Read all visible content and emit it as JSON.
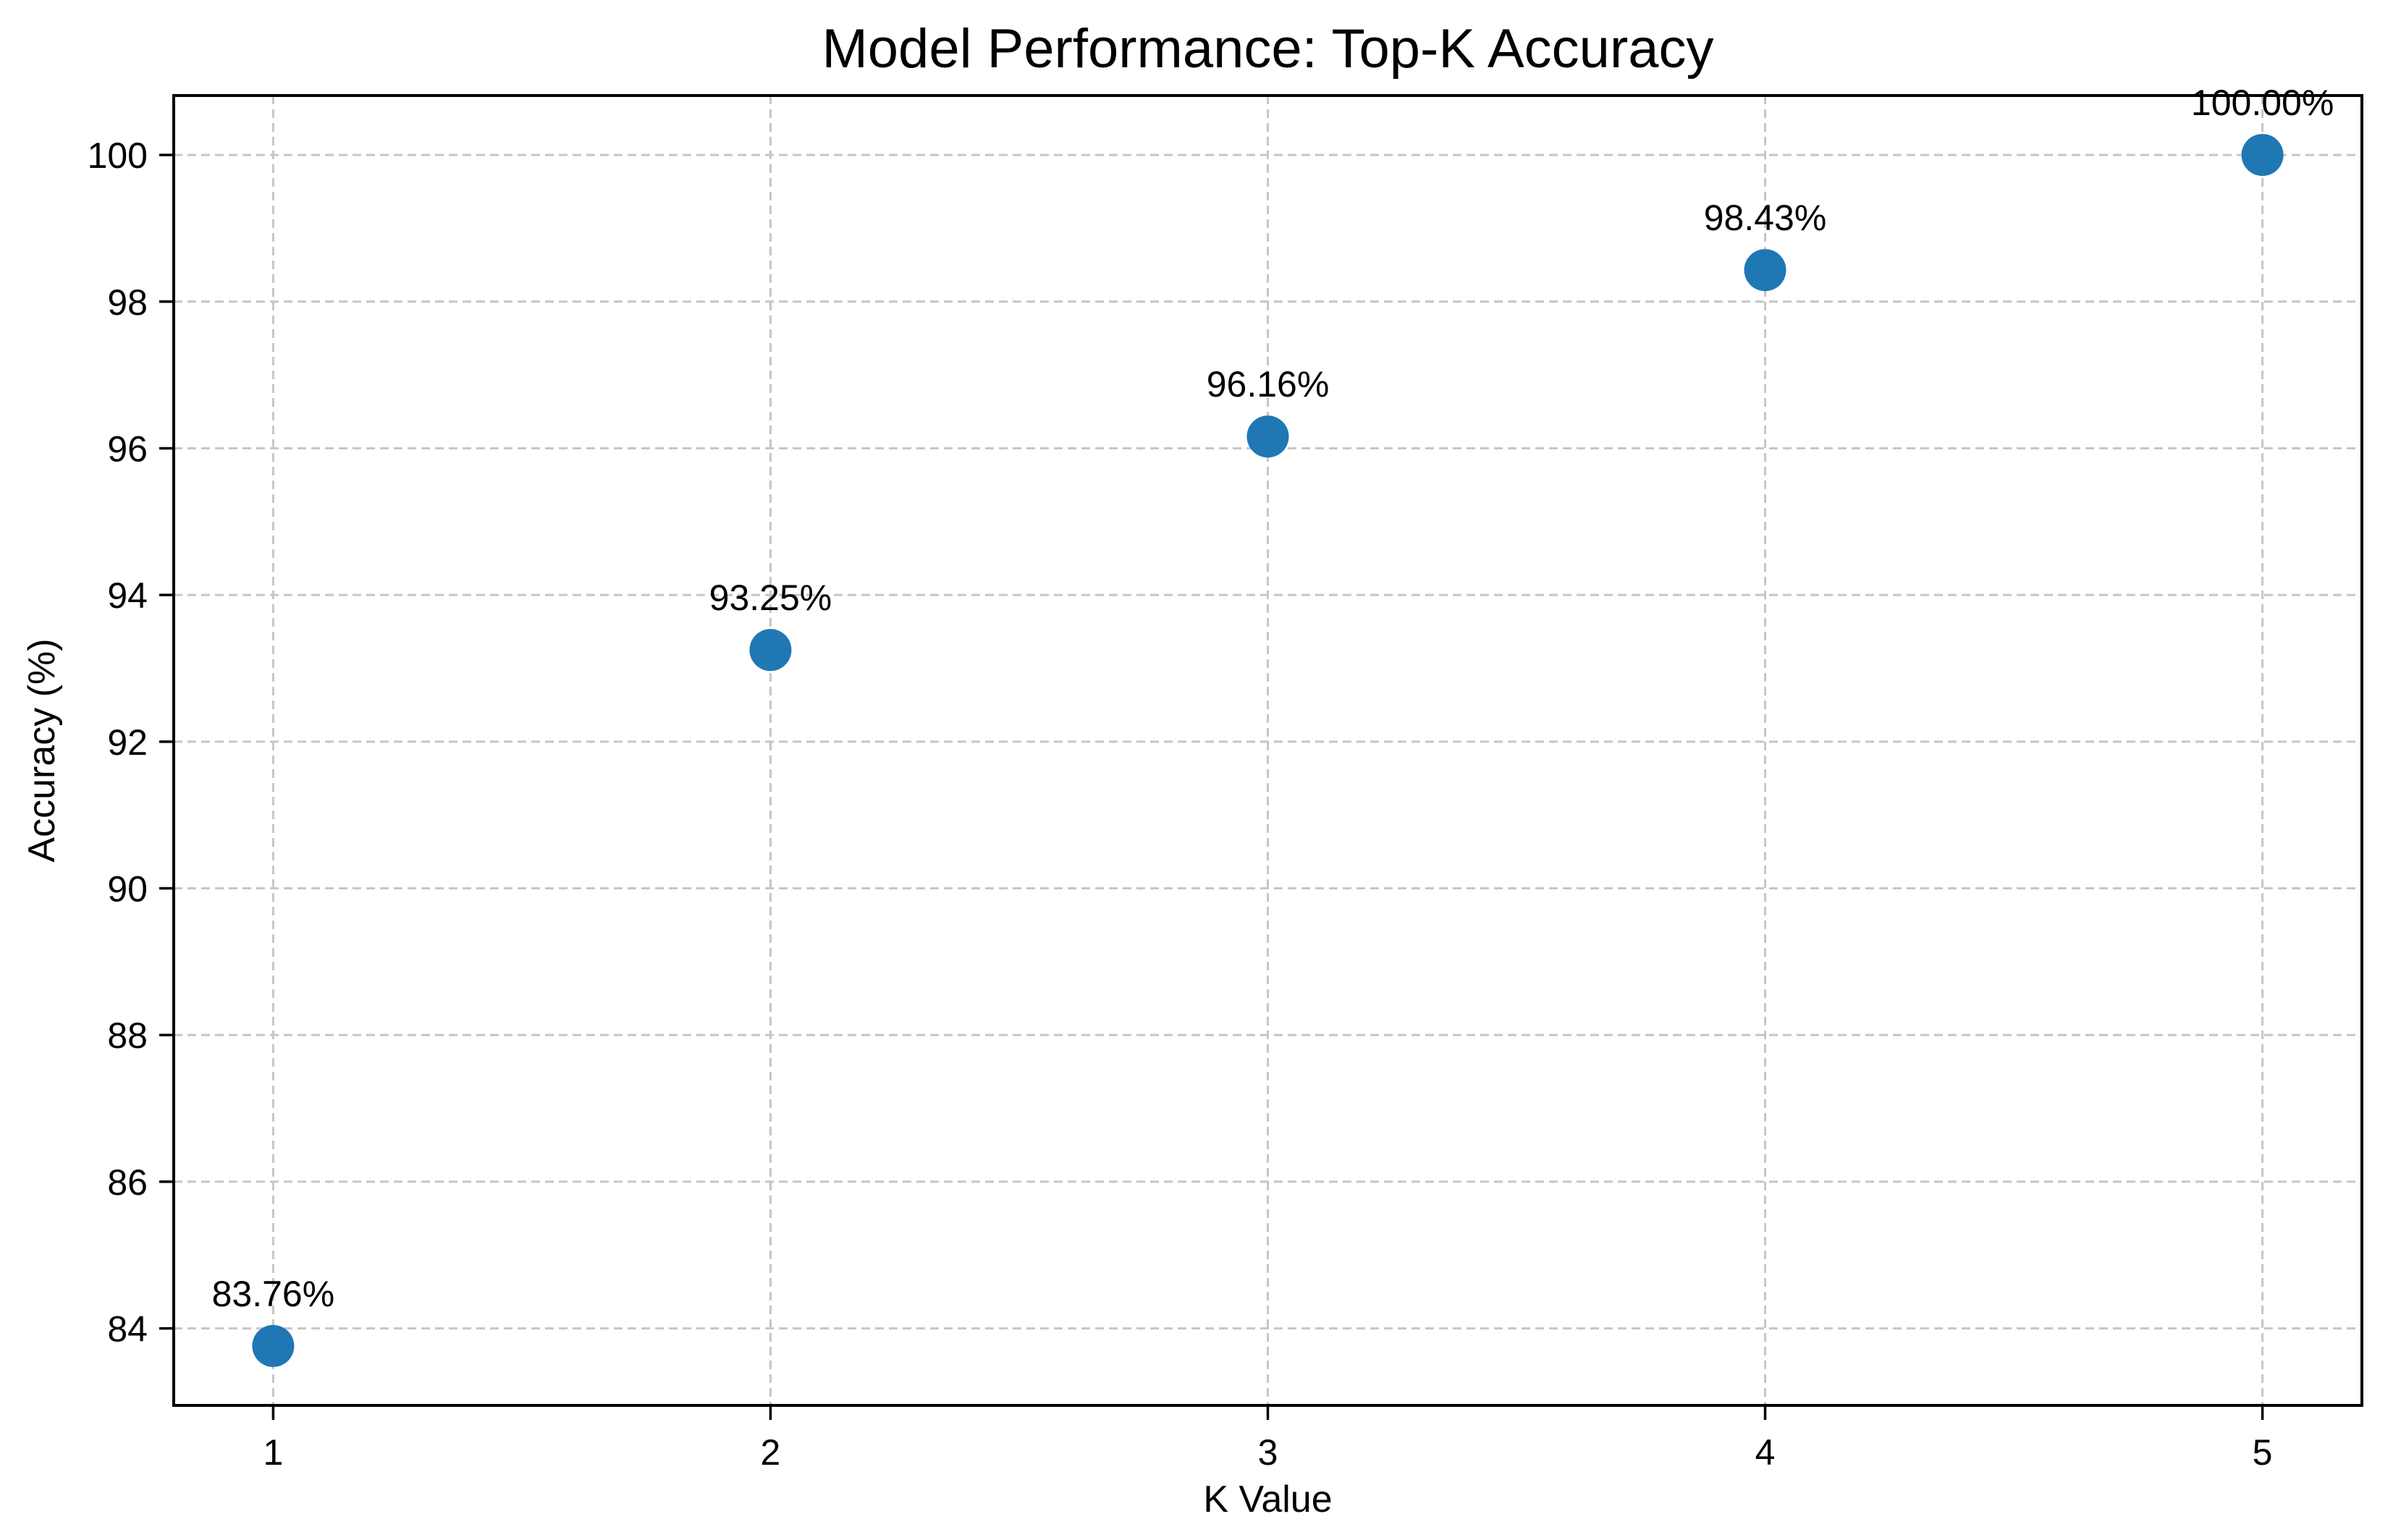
{
  "chart_data": {
    "type": "scatter",
    "title": "Model Performance: Top-K Accuracy",
    "xlabel": "K Value",
    "ylabel": "Accuracy (%)",
    "x": [
      1,
      2,
      3,
      4,
      5
    ],
    "y": [
      83.76,
      93.25,
      96.16,
      98.43,
      100.0
    ],
    "point_labels": [
      "83.76%",
      "93.25%",
      "96.16%",
      "98.43%",
      "100.00%"
    ],
    "xtick_labels": [
      "1",
      "2",
      "3",
      "4",
      "5"
    ],
    "xticks": [
      1,
      2,
      3,
      4,
      5
    ],
    "ytick_labels": [
      "84",
      "86",
      "88",
      "90",
      "92",
      "94",
      "96",
      "98",
      "100"
    ],
    "yticks": [
      84,
      86,
      88,
      90,
      92,
      94,
      96,
      98,
      100
    ],
    "xlim": [
      0.8,
      5.2
    ],
    "ylim": [
      82.95,
      100.81
    ],
    "grid": true,
    "grid_style": "dashed",
    "legend": null,
    "colors": {
      "marker": "#1f77b4",
      "grid": "#c6c6c6",
      "spine": "#000000",
      "text": "#000000",
      "background": "#ffffff"
    }
  }
}
